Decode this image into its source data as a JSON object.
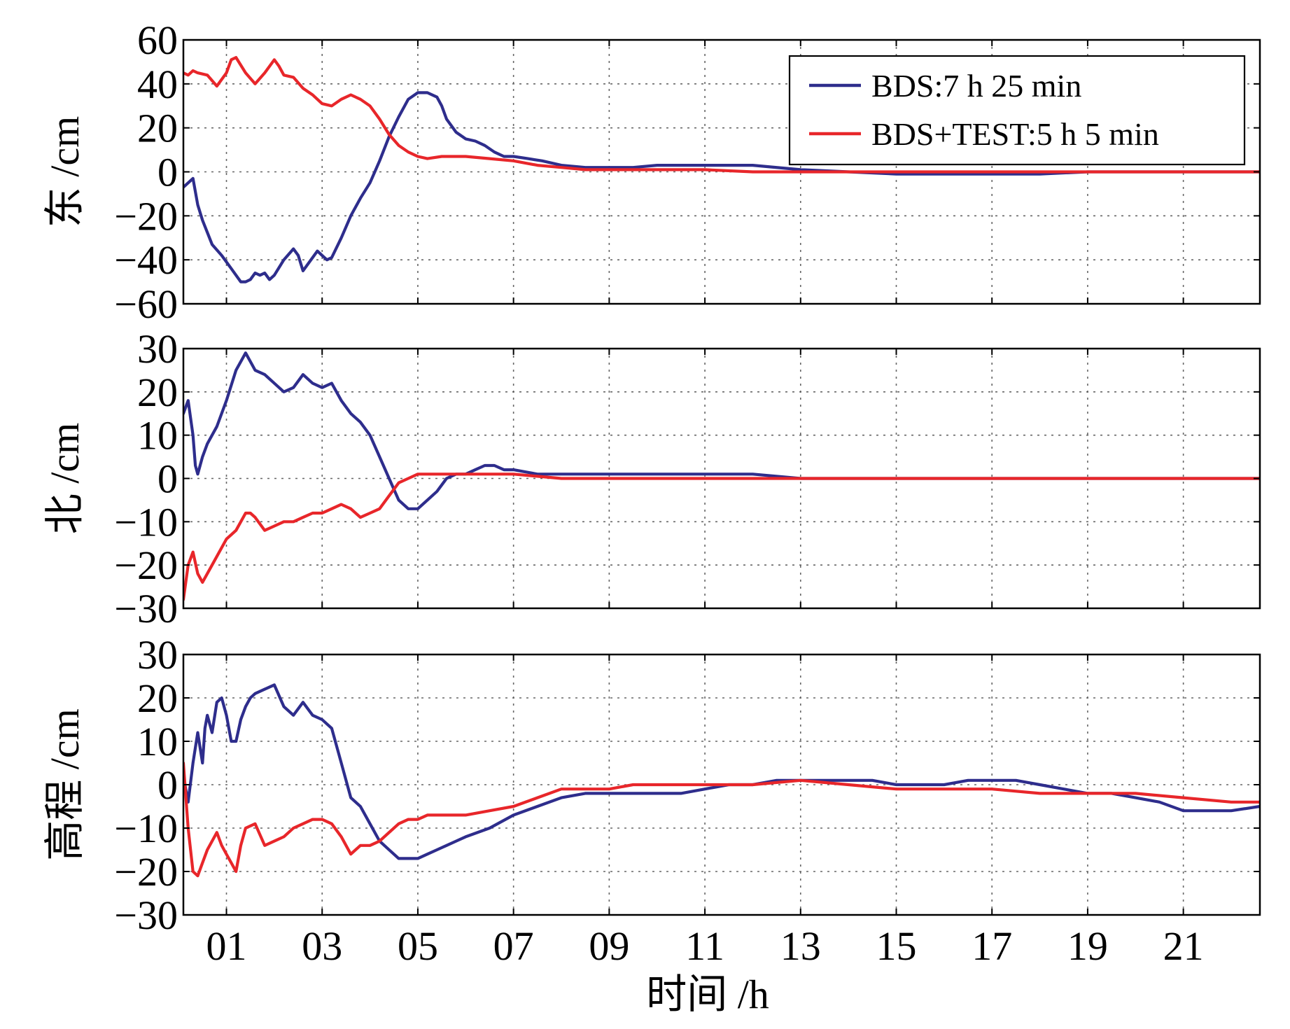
{
  "chart_data": [
    {
      "type": "line",
      "ylabel": "东 /cm",
      "ylim": [
        -60,
        60
      ],
      "yticks": [
        -60,
        -40,
        -20,
        0,
        20,
        40,
        60
      ],
      "ytick_labels": [
        "−60",
        "−40",
        "−20",
        "0",
        "20",
        "40",
        "60"
      ],
      "xlim": [
        0.1,
        22.6
      ],
      "grid": true,
      "legend": {
        "placement": "top-right"
      },
      "series": [
        {
          "name": "BDS:7 h 25 min",
          "color": "#2e2d8c",
          "x": [
            0.1,
            0.3,
            0.4,
            0.5,
            0.7,
            0.9,
            1.1,
            1.3,
            1.4,
            1.5,
            1.6,
            1.7,
            1.8,
            1.9,
            2.0,
            2.2,
            2.4,
            2.5,
            2.6,
            2.8,
            2.9,
            3.0,
            3.1,
            3.2,
            3.4,
            3.6,
            3.8,
            4.0,
            4.2,
            4.4,
            4.6,
            4.8,
            5.0,
            5.2,
            5.4,
            5.5,
            5.6,
            5.8,
            6.0,
            6.2,
            6.4,
            6.6,
            6.8,
            7.0,
            7.3,
            7.6,
            8.0,
            8.5,
            9.0,
            9.5,
            10.0,
            11.0,
            12.0,
            13.0,
            14.0,
            15.0,
            16.0,
            17.0,
            18.0,
            19.0,
            20.0,
            21.0,
            22.0,
            22.6
          ],
          "y": [
            -7,
            -3,
            -15,
            -22,
            -33,
            -38,
            -44,
            -50,
            -50,
            -49,
            -46,
            -47,
            -46,
            -49,
            -47,
            -40,
            -35,
            -38,
            -45,
            -39,
            -36,
            -38,
            -40,
            -39,
            -30,
            -20,
            -12,
            -5,
            5,
            16,
            25,
            33,
            36,
            36,
            34,
            30,
            24,
            18,
            15,
            14,
            12,
            9,
            7,
            7,
            6,
            5,
            3,
            2,
            2,
            2,
            3,
            3,
            3,
            1,
            0,
            -1,
            -1,
            -1,
            -1,
            0,
            0,
            0,
            0,
            0
          ]
        },
        {
          "name": "BDS+TEST:5 h 5 min",
          "color": "#e8262a",
          "x": [
            0.1,
            0.2,
            0.3,
            0.4,
            0.6,
            0.8,
            1.0,
            1.1,
            1.2,
            1.4,
            1.6,
            1.8,
            2.0,
            2.1,
            2.2,
            2.4,
            2.6,
            2.8,
            3.0,
            3.2,
            3.4,
            3.6,
            3.8,
            4.0,
            4.2,
            4.4,
            4.6,
            4.8,
            5.0,
            5.2,
            5.5,
            6.0,
            6.5,
            7.0,
            7.5,
            8.0,
            8.5,
            9.0,
            10.0,
            11.0,
            12.0,
            13.0,
            14.0,
            15.0,
            16.0,
            17.0,
            18.0,
            19.0,
            20.0,
            21.0,
            22.0,
            22.6
          ],
          "y": [
            45,
            44,
            46,
            45,
            44,
            39,
            45,
            51,
            52,
            45,
            40,
            45,
            51,
            48,
            44,
            43,
            38,
            35,
            31,
            30,
            33,
            35,
            33,
            30,
            24,
            17,
            12,
            9,
            7,
            6,
            7,
            7,
            6,
            5,
            3,
            2,
            1,
            1,
            1,
            1,
            0,
            0,
            0,
            0,
            0,
            0,
            0,
            0,
            0,
            0,
            0,
            0
          ]
        }
      ]
    },
    {
      "type": "line",
      "ylabel": "北 /cm",
      "ylim": [
        -30,
        30
      ],
      "yticks": [
        -30,
        -20,
        -10,
        0,
        10,
        20,
        30
      ],
      "ytick_labels": [
        "−30",
        "−20",
        "−10",
        "0",
        "10",
        "20",
        "30"
      ],
      "xlim": [
        0.1,
        22.6
      ],
      "grid": true,
      "series": [
        {
          "name": "BDS:7 h 25 min",
          "color": "#2e2d8c",
          "x": [
            0.1,
            0.2,
            0.3,
            0.35,
            0.4,
            0.5,
            0.6,
            0.8,
            1.0,
            1.2,
            1.4,
            1.5,
            1.6,
            1.8,
            2.0,
            2.2,
            2.4,
            2.6,
            2.8,
            3.0,
            3.2,
            3.4,
            3.6,
            3.8,
            4.0,
            4.2,
            4.4,
            4.6,
            4.8,
            5.0,
            5.2,
            5.4,
            5.6,
            5.8,
            6.0,
            6.2,
            6.4,
            6.6,
            6.8,
            7.0,
            7.5,
            8.0,
            9.0,
            10.0,
            11.0,
            12.0,
            13.0,
            14.0,
            15.0,
            16.0,
            17.0,
            18.0,
            19.0,
            20.0,
            21.0,
            22.0,
            22.6
          ],
          "y": [
            15,
            18,
            10,
            3,
            1,
            5,
            8,
            12,
            18,
            25,
            29,
            27,
            25,
            24,
            22,
            20,
            21,
            24,
            22,
            21,
            22,
            18,
            15,
            13,
            10,
            5,
            0,
            -5,
            -7,
            -7,
            -5,
            -3,
            0,
            1,
            1,
            2,
            3,
            3,
            2,
            2,
            1,
            1,
            1,
            1,
            1,
            1,
            0,
            0,
            0,
            0,
            0,
            0,
            0,
            0,
            0,
            0,
            0
          ]
        },
        {
          "name": "BDS+TEST:5 h 5 min",
          "color": "#e8262a",
          "x": [
            0.1,
            0.2,
            0.3,
            0.4,
            0.5,
            0.7,
            0.9,
            1.0,
            1.2,
            1.4,
            1.5,
            1.6,
            1.8,
            2.0,
            2.2,
            2.4,
            2.6,
            2.8,
            3.0,
            3.2,
            3.4,
            3.6,
            3.8,
            4.0,
            4.2,
            4.4,
            4.6,
            4.8,
            5.0,
            5.2,
            5.5,
            6.0,
            6.5,
            7.0,
            8.0,
            9.0,
            10.0,
            11.0,
            12.0,
            13.0,
            14.0,
            15.0,
            16.0,
            17.0,
            18.0,
            19.0,
            20.0,
            21.0,
            22.0,
            22.6
          ],
          "y": [
            -28,
            -20,
            -17,
            -22,
            -24,
            -20,
            -16,
            -14,
            -12,
            -8,
            -8,
            -9,
            -12,
            -11,
            -10,
            -10,
            -9,
            -8,
            -8,
            -7,
            -6,
            -7,
            -9,
            -8,
            -7,
            -4,
            -1,
            0,
            1,
            1,
            1,
            1,
            1,
            1,
            0,
            0,
            0,
            0,
            0,
            0,
            0,
            0,
            0,
            0,
            0,
            0,
            0,
            0,
            0,
            0
          ]
        }
      ]
    },
    {
      "type": "line",
      "ylabel": "高程 /cm",
      "ylim": [
        -30,
        30
      ],
      "yticks": [
        -30,
        -20,
        -10,
        0,
        10,
        20,
        30
      ],
      "ytick_labels": [
        "−30",
        "−20",
        "−10",
        "0",
        "10",
        "20",
        "30"
      ],
      "xlim": [
        0.1,
        22.6
      ],
      "xticks": [
        1,
        3,
        5,
        7,
        9,
        11,
        13,
        15,
        17,
        19,
        21
      ],
      "xtick_labels": [
        "01",
        "03",
        "05",
        "07",
        "09",
        "11",
        "13",
        "15",
        "17",
        "19",
        "21"
      ],
      "xlabel": "时间 /h",
      "grid": true,
      "series": [
        {
          "name": "BDS:7 h 25 min",
          "color": "#2e2d8c",
          "x": [
            0.1,
            0.2,
            0.3,
            0.4,
            0.5,
            0.55,
            0.6,
            0.7,
            0.8,
            0.9,
            1.0,
            1.1,
            1.2,
            1.3,
            1.4,
            1.5,
            1.6,
            1.8,
            2.0,
            2.2,
            2.4,
            2.6,
            2.8,
            3.0,
            3.2,
            3.4,
            3.6,
            3.8,
            4.0,
            4.2,
            4.4,
            4.6,
            4.8,
            5.0,
            5.2,
            5.4,
            5.6,
            5.8,
            6.0,
            6.5,
            7.0,
            7.5,
            8.0,
            8.5,
            9.0,
            9.5,
            10.0,
            10.5,
            11.0,
            11.5,
            12.0,
            12.5,
            13.0,
            13.5,
            14.0,
            14.5,
            15.0,
            15.5,
            16.0,
            16.5,
            17.0,
            17.5,
            18.0,
            18.5,
            19.0,
            19.5,
            20.0,
            20.5,
            21.0,
            21.5,
            22.0,
            22.6
          ],
          "y": [
            2,
            -4,
            5,
            12,
            5,
            13,
            16,
            12,
            19,
            20,
            16,
            10,
            10,
            15,
            18,
            20,
            21,
            22,
            23,
            18,
            16,
            19,
            16,
            15,
            13,
            5,
            -3,
            -5,
            -9,
            -13,
            -15,
            -17,
            -17,
            -17,
            -16,
            -15,
            -14,
            -13,
            -12,
            -10,
            -7,
            -5,
            -3,
            -2,
            -2,
            -2,
            -2,
            -2,
            -1,
            0,
            0,
            1,
            1,
            1,
            1,
            1,
            0,
            0,
            0,
            1,
            1,
            1,
            0,
            -1,
            -2,
            -2,
            -3,
            -4,
            -6,
            -6,
            -6,
            -5
          ]
        },
        {
          "name": "BDS+TEST:5 h 5 min",
          "color": "#e8262a",
          "x": [
            0.1,
            0.2,
            0.3,
            0.4,
            0.5,
            0.6,
            0.8,
            0.9,
            1.0,
            1.1,
            1.2,
            1.3,
            1.4,
            1.6,
            1.8,
            2.0,
            2.2,
            2.4,
            2.6,
            2.8,
            3.0,
            3.2,
            3.4,
            3.6,
            3.8,
            4.0,
            4.2,
            4.4,
            4.6,
            4.8,
            5.0,
            5.2,
            5.5,
            6.0,
            6.5,
            7.0,
            7.5,
            8.0,
            8.5,
            9.0,
            9.5,
            10.0,
            10.5,
            11.0,
            12.0,
            13.0,
            14.0,
            15.0,
            16.0,
            17.0,
            18.0,
            19.0,
            20.0,
            21.0,
            22.0,
            22.6
          ],
          "y": [
            5,
            -10,
            -20,
            -21,
            -18,
            -15,
            -11,
            -14,
            -16,
            -18,
            -20,
            -14,
            -10,
            -9,
            -14,
            -13,
            -12,
            -10,
            -9,
            -8,
            -8,
            -9,
            -12,
            -16,
            -14,
            -14,
            -13,
            -11,
            -9,
            -8,
            -8,
            -7,
            -7,
            -7,
            -6,
            -5,
            -3,
            -1,
            -1,
            -1,
            0,
            0,
            0,
            0,
            0,
            1,
            0,
            -1,
            -1,
            -1,
            -2,
            -2,
            -2,
            -3,
            -4,
            -4
          ]
        }
      ]
    }
  ]
}
